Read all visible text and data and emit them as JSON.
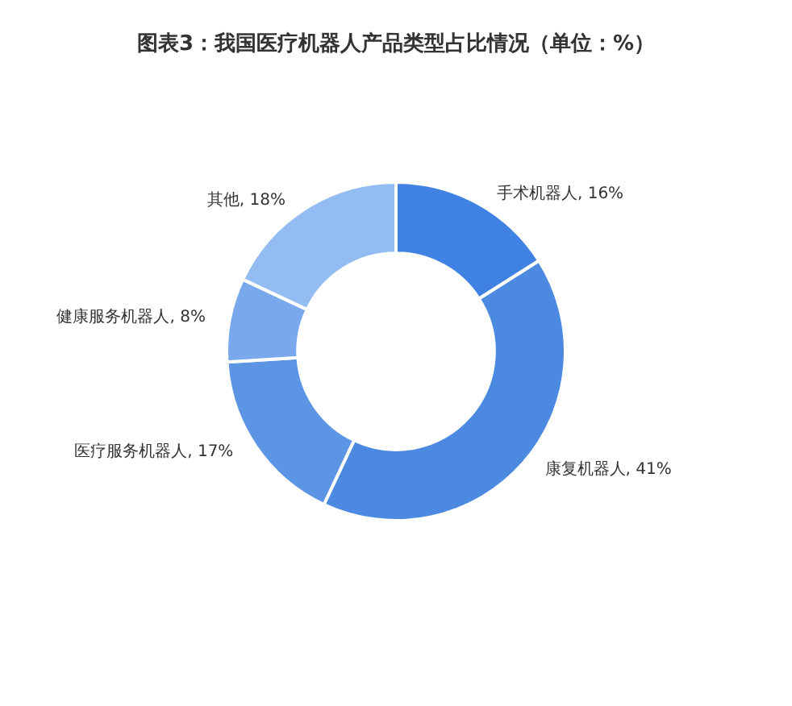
{
  "chart_data": {
    "type": "donut",
    "title": "图表3：我国医疗机器人产品类型占比情况（单位：%）",
    "categories": [
      "手术机器人",
      "康复机器人",
      "医疗服务机器人",
      "健康服务机器人",
      "其他"
    ],
    "values": [
      16,
      41,
      17,
      8,
      18
    ],
    "value_labels": [
      "16%",
      "41%",
      "17%",
      "8%",
      "18%"
    ],
    "colors": [
      "#3f82e3",
      "#4c8ae2",
      "#5c95e4",
      "#79a9ec",
      "#93bdf2"
    ],
    "legend": false
  }
}
